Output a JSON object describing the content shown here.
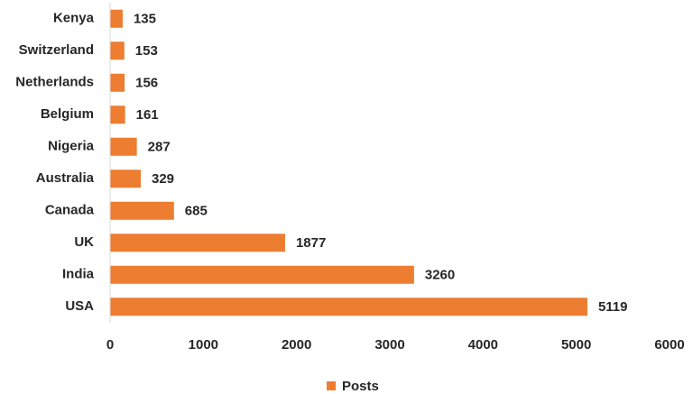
{
  "chart_data": {
    "type": "bar",
    "orientation": "horizontal",
    "categories": [
      "Kenya",
      "Switzerland",
      "Netherlands",
      "Belgium",
      "Nigeria",
      "Australia",
      "Canada",
      "UK",
      "India",
      "USA"
    ],
    "series": [
      {
        "name": "Posts",
        "color": "#ED7D31",
        "values": [
          135,
          153,
          156,
          161,
          287,
          329,
          685,
          1877,
          3260,
          5119
        ]
      }
    ],
    "xlim": [
      0,
      6000
    ],
    "xticks": [
      0,
      1000,
      2000,
      3000,
      4000,
      5000,
      6000
    ],
    "grid": false,
    "legend": "bottom"
  }
}
